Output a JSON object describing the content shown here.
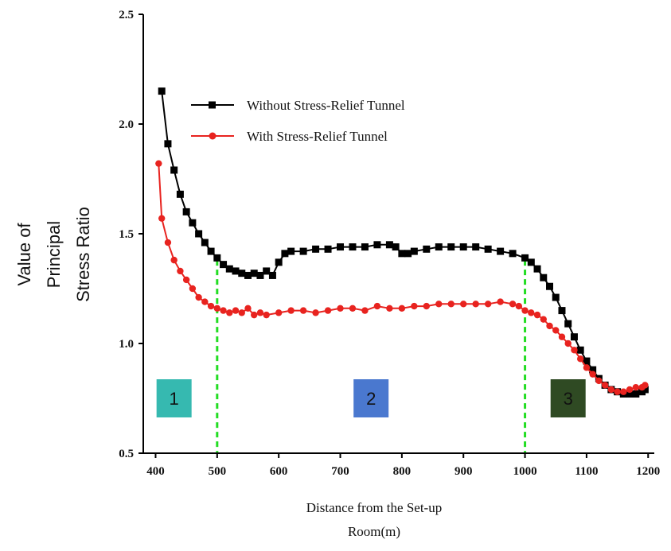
{
  "chart_data": {
    "type": "line",
    "title": "",
    "xlabel_lines": [
      "Distance from the Set-up",
      "Room(m)"
    ],
    "ylabel_lines": [
      "Value of",
      "Principal",
      "Stress Ratio"
    ],
    "xlim": [
      380,
      1210
    ],
    "ylim": [
      0.5,
      2.5
    ],
    "x_ticks": [
      400,
      500,
      600,
      700,
      800,
      900,
      1000,
      1100,
      1200
    ],
    "x_tick_labels": [
      "400",
      "500",
      "600",
      "700",
      "800",
      "900",
      "1000",
      "1100",
      "1200"
    ],
    "y_ticks": [
      0.5,
      1.0,
      1.5,
      2.0,
      2.5
    ],
    "y_tick_labels": [
      "0.5",
      "1.0",
      "1.5",
      "2.0",
      "2.5"
    ],
    "grid": false,
    "legend_position": "top-left",
    "series": [
      {
        "name": "Without Stress-Relief Tunnel",
        "color": "#000000",
        "marker": "square",
        "points": [
          [
            410,
            2.15
          ],
          [
            420,
            1.91
          ],
          [
            430,
            1.79
          ],
          [
            440,
            1.68
          ],
          [
            450,
            1.6
          ],
          [
            460,
            1.55
          ],
          [
            470,
            1.5
          ],
          [
            480,
            1.46
          ],
          [
            490,
            1.42
          ],
          [
            500,
            1.39
          ],
          [
            510,
            1.36
          ],
          [
            520,
            1.34
          ],
          [
            530,
            1.33
          ],
          [
            540,
            1.32
          ],
          [
            550,
            1.31
          ],
          [
            560,
            1.32
          ],
          [
            570,
            1.31
          ],
          [
            580,
            1.33
          ],
          [
            590,
            1.31
          ],
          [
            600,
            1.37
          ],
          [
            610,
            1.41
          ],
          [
            620,
            1.42
          ],
          [
            640,
            1.42
          ],
          [
            660,
            1.43
          ],
          [
            680,
            1.43
          ],
          [
            700,
            1.44
          ],
          [
            720,
            1.44
          ],
          [
            740,
            1.44
          ],
          [
            760,
            1.45
          ],
          [
            780,
            1.45
          ],
          [
            790,
            1.44
          ],
          [
            800,
            1.41
          ],
          [
            810,
            1.41
          ],
          [
            820,
            1.42
          ],
          [
            840,
            1.43
          ],
          [
            860,
            1.44
          ],
          [
            880,
            1.44
          ],
          [
            900,
            1.44
          ],
          [
            920,
            1.44
          ],
          [
            940,
            1.43
          ],
          [
            960,
            1.42
          ],
          [
            980,
            1.41
          ],
          [
            1000,
            1.39
          ],
          [
            1010,
            1.37
          ],
          [
            1020,
            1.34
          ],
          [
            1030,
            1.3
          ],
          [
            1040,
            1.26
          ],
          [
            1050,
            1.21
          ],
          [
            1060,
            1.15
          ],
          [
            1070,
            1.09
          ],
          [
            1080,
            1.03
          ],
          [
            1090,
            0.97
          ],
          [
            1100,
            0.92
          ],
          [
            1110,
            0.88
          ],
          [
            1120,
            0.84
          ],
          [
            1130,
            0.81
          ],
          [
            1140,
            0.79
          ],
          [
            1150,
            0.78
          ],
          [
            1160,
            0.77
          ],
          [
            1170,
            0.77
          ],
          [
            1180,
            0.77
          ],
          [
            1190,
            0.78
          ],
          [
            1195,
            0.79
          ]
        ]
      },
      {
        "name": "With Stress-Relief Tunnel",
        "color": "#e8231f",
        "marker": "circle",
        "points": [
          [
            405,
            1.82
          ],
          [
            410,
            1.57
          ],
          [
            420,
            1.46
          ],
          [
            430,
            1.38
          ],
          [
            440,
            1.33
          ],
          [
            450,
            1.29
          ],
          [
            460,
            1.25
          ],
          [
            470,
            1.21
          ],
          [
            480,
            1.19
          ],
          [
            490,
            1.17
          ],
          [
            500,
            1.16
          ],
          [
            510,
            1.15
          ],
          [
            520,
            1.14
          ],
          [
            530,
            1.15
          ],
          [
            540,
            1.14
          ],
          [
            550,
            1.16
          ],
          [
            560,
            1.13
          ],
          [
            570,
            1.14
          ],
          [
            580,
            1.13
          ],
          [
            600,
            1.14
          ],
          [
            620,
            1.15
          ],
          [
            640,
            1.15
          ],
          [
            660,
            1.14
          ],
          [
            680,
            1.15
          ],
          [
            700,
            1.16
          ],
          [
            720,
            1.16
          ],
          [
            740,
            1.15
          ],
          [
            760,
            1.17
          ],
          [
            780,
            1.16
          ],
          [
            800,
            1.16
          ],
          [
            820,
            1.17
          ],
          [
            840,
            1.17
          ],
          [
            860,
            1.18
          ],
          [
            880,
            1.18
          ],
          [
            900,
            1.18
          ],
          [
            920,
            1.18
          ],
          [
            940,
            1.18
          ],
          [
            960,
            1.19
          ],
          [
            980,
            1.18
          ],
          [
            990,
            1.17
          ],
          [
            1000,
            1.15
          ],
          [
            1010,
            1.14
          ],
          [
            1020,
            1.13
          ],
          [
            1030,
            1.11
          ],
          [
            1040,
            1.08
          ],
          [
            1050,
            1.06
          ],
          [
            1060,
            1.03
          ],
          [
            1070,
            1.0
          ],
          [
            1080,
            0.97
          ],
          [
            1090,
            0.93
          ],
          [
            1100,
            0.89
          ],
          [
            1110,
            0.86
          ],
          [
            1120,
            0.83
          ],
          [
            1130,
            0.81
          ],
          [
            1140,
            0.79
          ],
          [
            1150,
            0.78
          ],
          [
            1160,
            0.78
          ],
          [
            1170,
            0.79
          ],
          [
            1180,
            0.8
          ],
          [
            1190,
            0.8
          ],
          [
            1195,
            0.81
          ]
        ]
      }
    ],
    "annotations": {
      "boundaries": [
        500,
        1000
      ],
      "boundary_color": "#22dd22",
      "zones": [
        {
          "label": "1",
          "x": 430,
          "y": 0.75,
          "color": "#36b9b0"
        },
        {
          "label": "2",
          "x": 750,
          "y": 0.75,
          "color": "#4a78cf"
        },
        {
          "label": "3",
          "x": 1070,
          "y": 0.75,
          "color": "#2f4a23"
        }
      ]
    }
  }
}
